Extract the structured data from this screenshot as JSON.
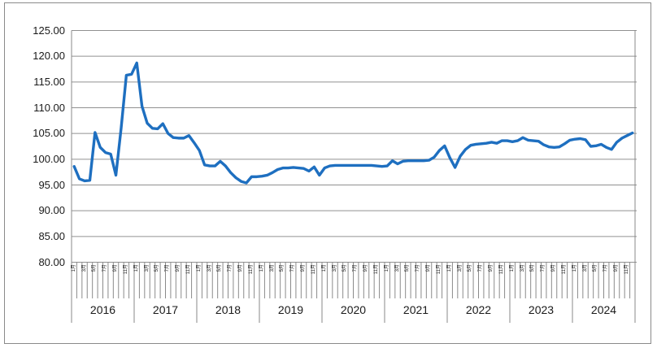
{
  "chart": {
    "title": "",
    "colors": {
      "line": "#1E6FC0",
      "gridline": "#909090",
      "axis": "#8A8A8A",
      "tick": "#8A8A8A",
      "text": "#1A1A1A",
      "border": "#8A8A8A",
      "background": "#FFFFFF"
    },
    "y_axis": {
      "min": 80,
      "max": 125,
      "step": 5,
      "labels": [
        "125.00",
        "120.00",
        "115.00",
        "110.00",
        "105.00",
        "100.00",
        "95.00",
        "90.00",
        "85.00",
        "80.00"
      ]
    },
    "x_axis": {
      "years": [
        "2016",
        "2017",
        "2018",
        "2019",
        "2020",
        "2021",
        "2022",
        "2023",
        "2024"
      ],
      "months_per_year": 12,
      "visible_month_numbers": [
        1,
        3,
        5,
        7,
        9,
        11
      ],
      "visible_month_labels": [
        "1月",
        "3月",
        "5月",
        "7月",
        "9月",
        "11月"
      ]
    }
  },
  "chart_data": {
    "type": "line",
    "title": "",
    "xlabel": "",
    "ylabel": "",
    "legend": "none",
    "grid": "horizontal",
    "ylim": [
      80,
      125
    ],
    "y_tick_step": 5,
    "x_start": "2016-01",
    "x_frequency": "monthly",
    "categories_years": [
      "2016",
      "2017",
      "2018",
      "2019",
      "2020",
      "2021",
      "2022",
      "2023",
      "2024"
    ],
    "line_color": "#1E6FC0",
    "values": [
      98.6,
      96.2,
      95.8,
      95.9,
      105.2,
      102.3,
      101.3,
      101.0,
      96.9,
      106.0,
      116.3,
      116.5,
      118.7,
      110.3,
      107.0,
      106.0,
      105.9,
      106.9,
      105.0,
      104.2,
      104.1,
      104.1,
      104.6,
      103.2,
      101.7,
      98.9,
      98.7,
      98.7,
      99.6,
      98.7,
      97.4,
      96.4,
      95.7,
      95.4,
      96.6,
      96.6,
      96.7,
      96.9,
      97.4,
      98.0,
      98.3,
      98.3,
      98.4,
      98.3,
      98.2,
      97.7,
      98.5,
      96.9,
      98.3,
      98.7,
      98.8,
      98.8,
      98.8,
      98.8,
      98.8,
      98.8,
      98.8,
      98.8,
      98.7,
      98.6,
      98.7,
      99.7,
      99.1,
      99.6,
      99.7,
      99.7,
      99.7,
      99.7,
      99.8,
      100.4,
      101.7,
      102.6,
      100.3,
      98.4,
      100.6,
      101.9,
      102.7,
      102.9,
      103.0,
      103.1,
      103.3,
      103.1,
      103.6,
      103.6,
      103.4,
      103.6,
      104.2,
      103.7,
      103.6,
      103.5,
      102.8,
      102.4,
      102.3,
      102.4,
      103.0,
      103.7,
      103.9,
      104.0,
      103.8,
      102.5,
      102.6,
      102.9,
      102.3,
      101.9,
      103.3,
      104.1,
      104.6,
      105.1
    ]
  }
}
